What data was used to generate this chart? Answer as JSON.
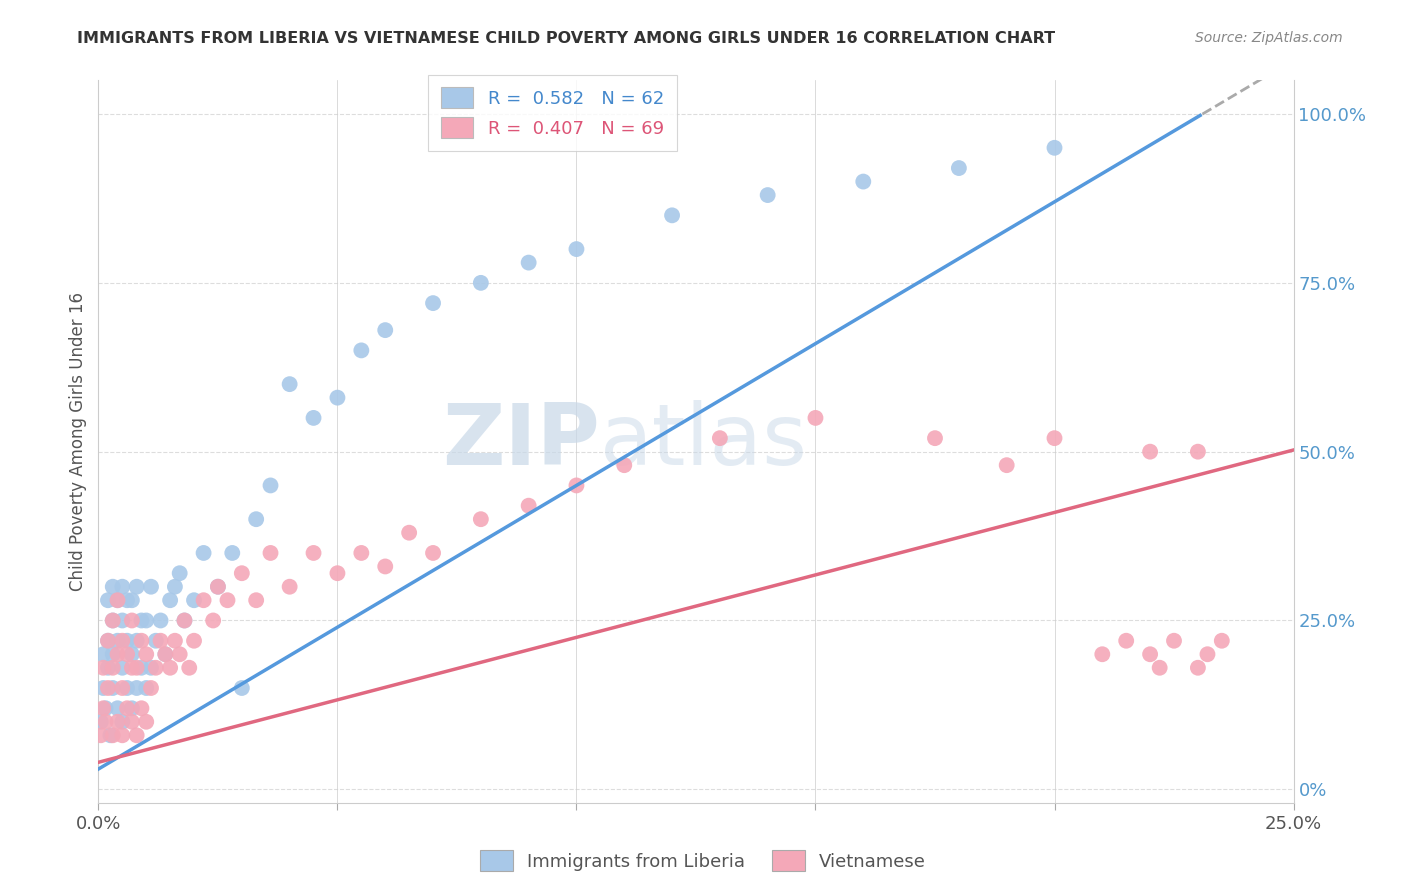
{
  "title": "IMMIGRANTS FROM LIBERIA VS VIETNAMESE CHILD POVERTY AMONG GIRLS UNDER 16 CORRELATION CHART",
  "source": "Source: ZipAtlas.com",
  "ylabel": "Child Poverty Among Girls Under 16",
  "xlim": [
    0.0,
    0.25
  ],
  "ylim": [
    -0.02,
    1.05
  ],
  "blue_line_slope": 4.2,
  "blue_line_intercept": 0.03,
  "pink_line_slope": 1.85,
  "pink_line_intercept": 0.04,
  "legend_label_blue": "R =  0.582   N = 62",
  "legend_label_pink": "R =  0.407   N = 69",
  "legend_bottom_blue": "Immigrants from Liberia",
  "legend_bottom_pink": "Vietnamese",
  "blue_color": "#a8c8e8",
  "pink_color": "#f4a8b8",
  "blue_line_color": "#5599dd",
  "pink_line_color": "#e06880",
  "watermark_zip": "ZIP",
  "watermark_atlas": "atlas",
  "background_color": "#ffffff",
  "grid_color": "#dddddd",
  "blue_scatter_x": [
    0.0005,
    0.001,
    0.001,
    0.0015,
    0.002,
    0.002,
    0.002,
    0.0025,
    0.003,
    0.003,
    0.003,
    0.003,
    0.004,
    0.004,
    0.004,
    0.005,
    0.005,
    0.005,
    0.005,
    0.006,
    0.006,
    0.006,
    0.007,
    0.007,
    0.007,
    0.008,
    0.008,
    0.008,
    0.009,
    0.009,
    0.01,
    0.01,
    0.011,
    0.011,
    0.012,
    0.013,
    0.014,
    0.015,
    0.016,
    0.017,
    0.018,
    0.02,
    0.022,
    0.025,
    0.028,
    0.03,
    0.033,
    0.036,
    0.04,
    0.045,
    0.05,
    0.055,
    0.06,
    0.07,
    0.08,
    0.09,
    0.1,
    0.12,
    0.14,
    0.16,
    0.18,
    0.2
  ],
  "blue_scatter_y": [
    0.1,
    0.15,
    0.2,
    0.12,
    0.18,
    0.22,
    0.28,
    0.08,
    0.15,
    0.2,
    0.25,
    0.3,
    0.12,
    0.22,
    0.28,
    0.1,
    0.18,
    0.25,
    0.3,
    0.15,
    0.22,
    0.28,
    0.12,
    0.2,
    0.28,
    0.15,
    0.22,
    0.3,
    0.18,
    0.25,
    0.15,
    0.25,
    0.18,
    0.3,
    0.22,
    0.25,
    0.2,
    0.28,
    0.3,
    0.32,
    0.25,
    0.28,
    0.35,
    0.3,
    0.35,
    0.15,
    0.4,
    0.45,
    0.6,
    0.55,
    0.58,
    0.65,
    0.68,
    0.72,
    0.75,
    0.78,
    0.8,
    0.85,
    0.88,
    0.9,
    0.92,
    0.95
  ],
  "pink_scatter_x": [
    0.0005,
    0.001,
    0.001,
    0.0015,
    0.002,
    0.002,
    0.003,
    0.003,
    0.003,
    0.004,
    0.004,
    0.004,
    0.005,
    0.005,
    0.005,
    0.006,
    0.006,
    0.007,
    0.007,
    0.007,
    0.008,
    0.008,
    0.009,
    0.009,
    0.01,
    0.01,
    0.011,
    0.012,
    0.013,
    0.014,
    0.015,
    0.016,
    0.017,
    0.018,
    0.019,
    0.02,
    0.022,
    0.024,
    0.025,
    0.027,
    0.03,
    0.033,
    0.036,
    0.04,
    0.045,
    0.05,
    0.055,
    0.06,
    0.065,
    0.07,
    0.08,
    0.09,
    0.1,
    0.11,
    0.13,
    0.15,
    0.175,
    0.19,
    0.2,
    0.21,
    0.215,
    0.22,
    0.22,
    0.222,
    0.225,
    0.23,
    0.23,
    0.232,
    0.235
  ],
  "pink_scatter_y": [
    0.08,
    0.12,
    0.18,
    0.1,
    0.15,
    0.22,
    0.08,
    0.18,
    0.25,
    0.1,
    0.2,
    0.28,
    0.08,
    0.15,
    0.22,
    0.12,
    0.2,
    0.1,
    0.18,
    0.25,
    0.08,
    0.18,
    0.12,
    0.22,
    0.1,
    0.2,
    0.15,
    0.18,
    0.22,
    0.2,
    0.18,
    0.22,
    0.2,
    0.25,
    0.18,
    0.22,
    0.28,
    0.25,
    0.3,
    0.28,
    0.32,
    0.28,
    0.35,
    0.3,
    0.35,
    0.32,
    0.35,
    0.33,
    0.38,
    0.35,
    0.4,
    0.42,
    0.45,
    0.48,
    0.52,
    0.55,
    0.52,
    0.48,
    0.52,
    0.2,
    0.22,
    0.2,
    0.5,
    0.18,
    0.22,
    0.18,
    0.5,
    0.2,
    0.22
  ]
}
